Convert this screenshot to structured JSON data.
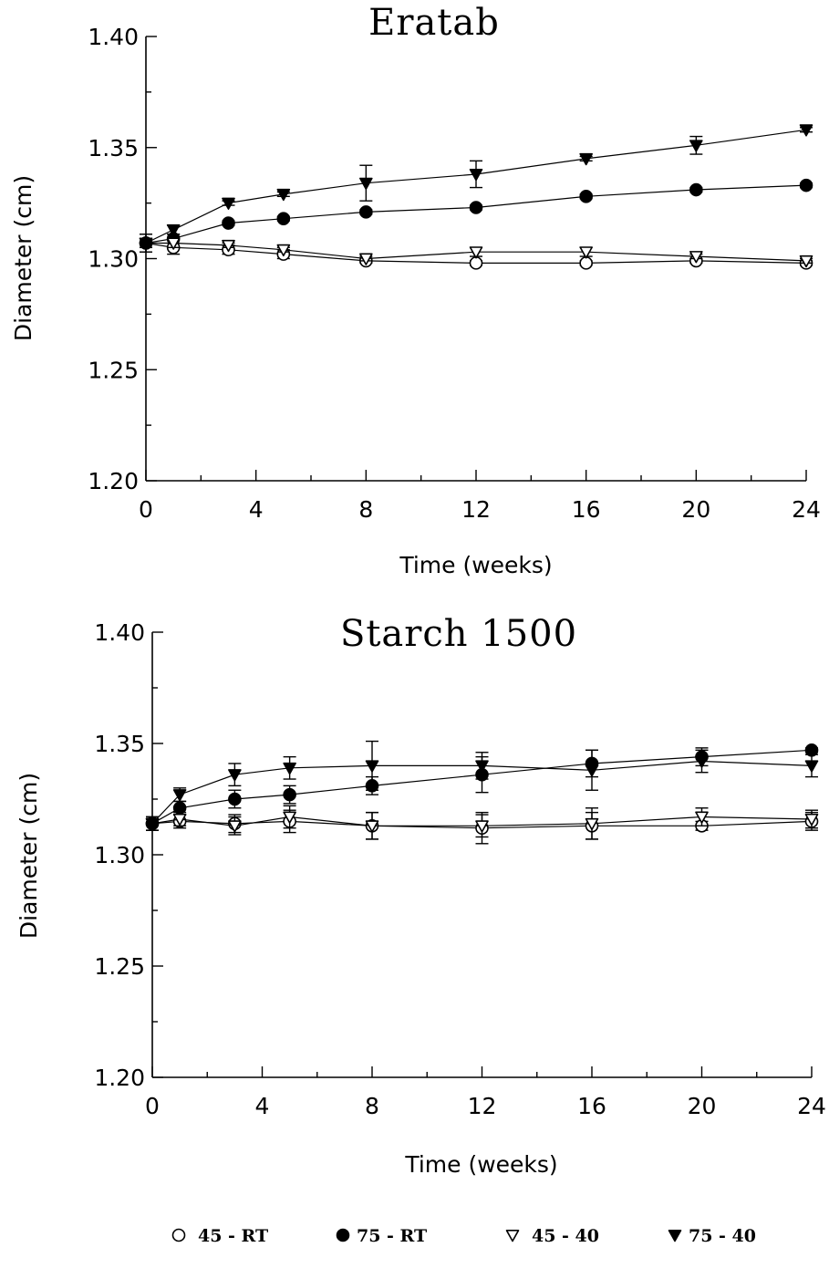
{
  "legend": [
    {
      "label": "45 - RT",
      "marker": "circle-open"
    },
    {
      "label": "75 - RT",
      "marker": "circle-filled"
    },
    {
      "label": "45 - 40",
      "marker": "triangle-down-open"
    },
    {
      "label": "75 - 40",
      "marker": "triangle-down-filled"
    }
  ],
  "chart_data": [
    {
      "type": "line",
      "title": "Eratab",
      "xlabel": "Time (weeks)",
      "ylabel": "Diameter (cm)",
      "xlim": [
        0,
        24
      ],
      "ylim": [
        1.2,
        1.4
      ],
      "xticks": [
        "0",
        "4",
        "8",
        "12",
        "16",
        "20",
        "24"
      ],
      "yticks": [
        "1.20",
        "1.25",
        "1.30",
        "1.35",
        "1.40"
      ],
      "grid": false,
      "series": [
        {
          "name": "45 - RT",
          "marker": "circle-open",
          "x": [
            0,
            1,
            3,
            5,
            8,
            12,
            16,
            20,
            24
          ],
          "values": [
            1.307,
            1.305,
            1.304,
            1.302,
            1.299,
            1.298,
            1.298,
            1.299,
            1.298
          ],
          "errors": [
            0.004,
            0.003,
            0.002,
            0.002,
            0.001,
            0.001,
            0.001,
            0.001,
            0.001
          ]
        },
        {
          "name": "75 - RT",
          "marker": "circle-filled",
          "x": [
            0,
            1,
            3,
            5,
            8,
            12,
            16,
            20,
            24
          ],
          "values": [
            1.307,
            1.309,
            1.316,
            1.318,
            1.321,
            1.323,
            1.328,
            1.331,
            1.333
          ],
          "errors": [
            0.004,
            0.002,
            0.001,
            0.001,
            0.001,
            0.001,
            0.001,
            0.001,
            0.001
          ]
        },
        {
          "name": "45 - 40",
          "marker": "triangle-down-open",
          "x": [
            0,
            1,
            3,
            5,
            8,
            12,
            16,
            20,
            24
          ],
          "values": [
            1.307,
            1.307,
            1.306,
            1.304,
            1.3,
            1.303,
            1.303,
            1.301,
            1.299
          ],
          "errors": [
            0.002,
            0.002,
            0.001,
            0.001,
            0.001,
            0.002,
            0.002,
            0.001,
            0.001
          ]
        },
        {
          "name": "75 - 40",
          "marker": "triangle-down-filled",
          "x": [
            0,
            1,
            3,
            5,
            8,
            12,
            16,
            20,
            24
          ],
          "values": [
            1.307,
            1.313,
            1.325,
            1.329,
            1.334,
            1.338,
            1.345,
            1.351,
            1.358
          ],
          "errors": [
            0.002,
            0.002,
            0.001,
            0.001,
            0.008,
            0.006,
            0.001,
            0.004,
            0.001
          ]
        }
      ]
    },
    {
      "type": "line",
      "title": "Starch 1500",
      "xlabel": "Time (weeks)",
      "ylabel": "Diameter (cm)",
      "xlim": [
        0,
        24
      ],
      "ylim": [
        1.2,
        1.4
      ],
      "xticks": [
        "0",
        "4",
        "8",
        "12",
        "16",
        "20",
        "24"
      ],
      "yticks": [
        "1.20",
        "1.25",
        "1.30",
        "1.35",
        "1.40"
      ],
      "grid": false,
      "series": [
        {
          "name": "45 - RT",
          "marker": "circle-open",
          "x": [
            0,
            1,
            3,
            5,
            8,
            12,
            16,
            20,
            24
          ],
          "values": [
            1.314,
            1.315,
            1.314,
            1.315,
            1.313,
            1.312,
            1.313,
            1.313,
            1.315
          ],
          "errors": [
            0.003,
            0.003,
            0.004,
            0.005,
            0.006,
            0.007,
            0.006,
            0.002,
            0.004
          ]
        },
        {
          "name": "75 - RT",
          "marker": "circle-filled",
          "x": [
            0,
            1,
            3,
            5,
            8,
            12,
            16,
            20,
            24
          ],
          "values": [
            1.314,
            1.321,
            1.325,
            1.327,
            1.331,
            1.336,
            1.341,
            1.344,
            1.347
          ],
          "errors": [
            0.003,
            0.003,
            0.004,
            0.004,
            0.004,
            0.008,
            0.006,
            0.004,
            0.001
          ]
        },
        {
          "name": "45 - 40",
          "marker": "triangle-down-open",
          "x": [
            0,
            1,
            3,
            5,
            8,
            12,
            16,
            20,
            24
          ],
          "values": [
            1.314,
            1.316,
            1.313,
            1.317,
            1.313,
            1.313,
            1.314,
            1.317,
            1.316
          ],
          "errors": [
            0.003,
            0.003,
            0.004,
            0.005,
            0.006,
            0.005,
            0.007,
            0.004,
            0.004
          ]
        },
        {
          "name": "75 - 40",
          "marker": "triangle-down-filled",
          "x": [
            0,
            1,
            3,
            5,
            8,
            12,
            16,
            20,
            24
          ],
          "values": [
            1.314,
            1.327,
            1.336,
            1.339,
            1.34,
            1.34,
            1.338,
            1.342,
            1.34
          ],
          "errors": [
            0.003,
            0.003,
            0.005,
            0.005,
            0.011,
            0.006,
            0.009,
            0.005,
            0.005
          ]
        }
      ]
    }
  ]
}
